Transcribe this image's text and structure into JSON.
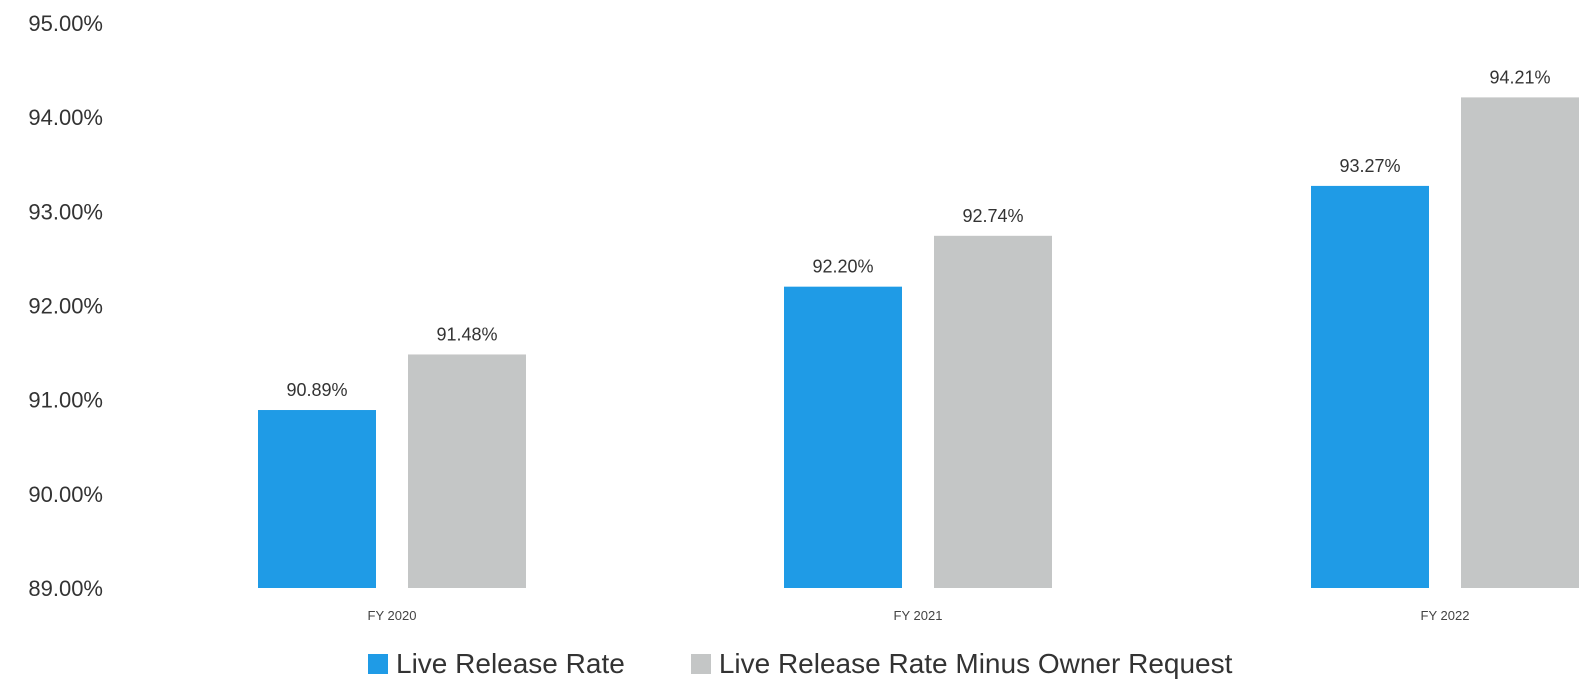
{
  "chart_data": {
    "type": "bar",
    "categories": [
      "FY 2020",
      "FY 2021",
      "FY 2022"
    ],
    "series": [
      {
        "name": "Live Release Rate",
        "values": [
          90.89,
          92.2,
          93.27
        ],
        "labels": [
          "90.89%",
          "92.20%",
          "93.27%"
        ],
        "color": "#1f9be6"
      },
      {
        "name": "Live Release Rate Minus Owner Request",
        "values": [
          91.48,
          92.74,
          94.21
        ],
        "labels": [
          "91.48%",
          "92.74%",
          "94.21%"
        ],
        "color": "#c4c6c6"
      }
    ],
    "ylim": [
      89,
      95
    ],
    "yticks": [
      89,
      90,
      91,
      92,
      93,
      94,
      95
    ],
    "ytick_labels": [
      "89.00%",
      "90.00%",
      "91.00%",
      "92.00%",
      "93.00%",
      "94.00%",
      "95.00%"
    ],
    "grid": false,
    "legend_position": "bottom",
    "title": "",
    "xlabel": "",
    "ylabel": ""
  }
}
